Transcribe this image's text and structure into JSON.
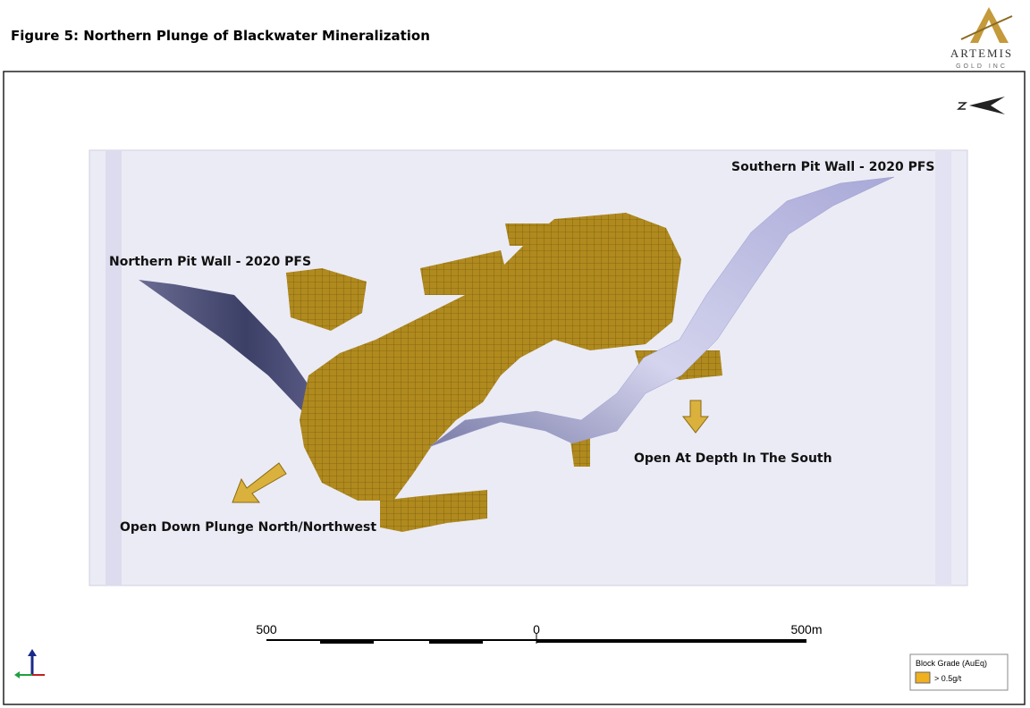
{
  "figure": {
    "title": "Figure 5: Northern Plunge of Blackwater Mineralization"
  },
  "logo": {
    "name": "ARTEMIS",
    "subtitle": "GOLD INC"
  },
  "annotations": {
    "northern_pit_wall": "Northern Pit Wall - 2020 PFS",
    "southern_pit_wall": "Southern Pit Wall - 2020 PFS",
    "open_down_plunge": "Open Down Plunge North/Northwest",
    "open_at_depth": "Open At Depth In The South"
  },
  "scale_bar": {
    "left": "500",
    "center": "0",
    "right": "500m"
  },
  "legend": {
    "title": "Block Grade (AuEq)",
    "item": "> 0.5g/t"
  }
}
